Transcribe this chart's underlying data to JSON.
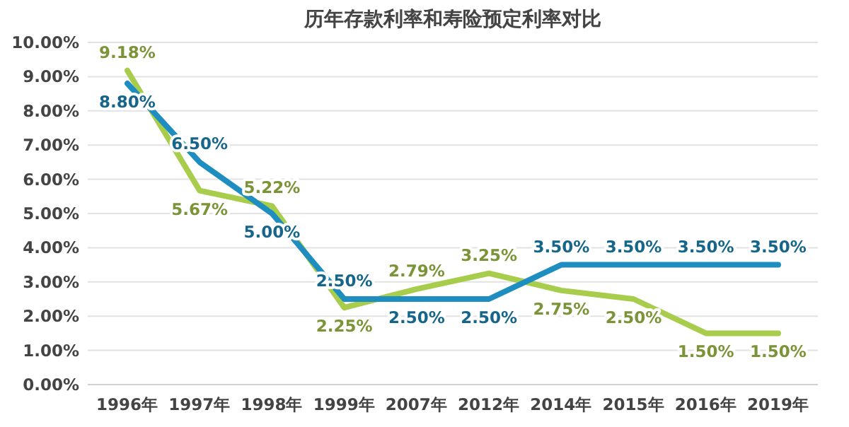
{
  "chart_data": {
    "type": "line",
    "title": "历年存款利率和寿险预定利率对比",
    "categories": [
      "1996年",
      "1997年",
      "1998年",
      "1999年",
      "2007年",
      "2012年",
      "2014年",
      "2015年",
      "2016年",
      "2019年"
    ],
    "series": [
      {
        "color": "#a8cc4c",
        "values": [
          9.18,
          5.67,
          5.22,
          2.25,
          2.79,
          3.25,
          2.75,
          2.5,
          1.5,
          1.5
        ],
        "value_labels": [
          "9.18%",
          "5.67%",
          "5.22%",
          "2.25%",
          "2.79%",
          "3.25%",
          "2.75%",
          "2.50%",
          "1.50%",
          "1.50%"
        ]
      },
      {
        "color": "#1e8dbf",
        "values": [
          8.8,
          6.5,
          5.0,
          2.5,
          2.5,
          2.5,
          3.5,
          3.5,
          3.5,
          3.5
        ],
        "value_labels": [
          "8.80%",
          "6.50%",
          "5.00%",
          "2.50%",
          "2.50%",
          "2.50%",
          "3.50%",
          "3.50%",
          "3.50%",
          "3.50%"
        ]
      }
    ],
    "ylim": [
      0,
      10
    ],
    "yticks": [
      {
        "value": 0,
        "label": "0.00%"
      },
      {
        "value": 1,
        "label": "1.00%"
      },
      {
        "value": 2,
        "label": "2.00%"
      },
      {
        "value": 3,
        "label": "3.00%"
      },
      {
        "value": 4,
        "label": "4.00%"
      },
      {
        "value": 5,
        "label": "5.00%"
      },
      {
        "value": 6,
        "label": "6.00%"
      },
      {
        "value": 7,
        "label": "7.00%"
      },
      {
        "value": 8,
        "label": "8.00%"
      },
      {
        "value": 9,
        "label": "9.00%"
      },
      {
        "value": 10,
        "label": "10.00%"
      }
    ],
    "grid": "y",
    "marker": "none",
    "line_style": "solid"
  }
}
